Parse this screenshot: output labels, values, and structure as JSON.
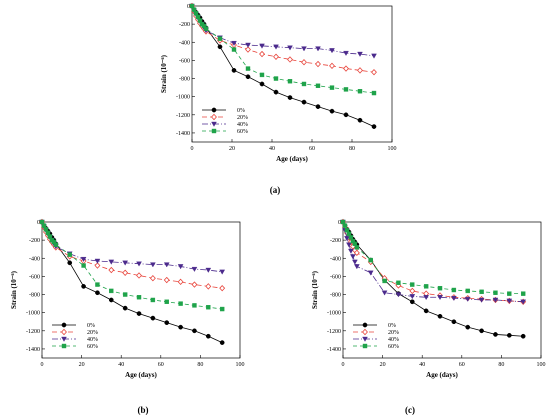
{
  "chart_data": [
    {
      "type": "line",
      "panel_label": "(a)",
      "xlabel": "Age (days)",
      "ylabel": "Strain (10⁻⁶)",
      "xlim": [
        0,
        100
      ],
      "ylim": [
        -1500,
        0
      ],
      "xticks": [
        0,
        20,
        40,
        60,
        80,
        100
      ],
      "yticks": [
        0,
        -200,
        -400,
        -600,
        -800,
        -1000,
        -1200,
        -1400
      ],
      "legend_position": "lower-left",
      "series": [
        {
          "name": "0%",
          "color": "#000000",
          "marker": "circle-filled",
          "dash": "",
          "points": [
            [
              0,
              0
            ],
            [
              1,
              -40
            ],
            [
              2,
              -70
            ],
            [
              3,
              -100
            ],
            [
              4,
              -130
            ],
            [
              5,
              -170
            ],
            [
              6,
              -200
            ],
            [
              7,
              -240
            ],
            [
              14,
              -450
            ],
            [
              21,
              -710
            ],
            [
              28,
              -780
            ],
            [
              35,
              -860
            ],
            [
              42,
              -950
            ],
            [
              49,
              -1010
            ],
            [
              56,
              -1060
            ],
            [
              63,
              -1110
            ],
            [
              70,
              -1160
            ],
            [
              77,
              -1200
            ],
            [
              84,
              -1260
            ],
            [
              91,
              -1330
            ]
          ]
        },
        {
          "name": "20%",
          "color": "#e8453c",
          "marker": "diamond-open",
          "dash": "5,3",
          "points": [
            [
              0,
              0
            ],
            [
              1,
              -60
            ],
            [
              2,
              -110
            ],
            [
              3,
              -150
            ],
            [
              4,
              -190
            ],
            [
              5,
              -220
            ],
            [
              6,
              -250
            ],
            [
              7,
              -280
            ],
            [
              14,
              -380
            ],
            [
              21,
              -430
            ],
            [
              28,
              -480
            ],
            [
              35,
              -530
            ],
            [
              42,
              -560
            ],
            [
              49,
              -590
            ],
            [
              56,
              -620
            ],
            [
              63,
              -640
            ],
            [
              70,
              -660
            ],
            [
              77,
              -690
            ],
            [
              84,
              -710
            ],
            [
              91,
              -730
            ]
          ]
        },
        {
          "name": "40%",
          "color": "#4b2a8c",
          "marker": "triangle-down-filled",
          "dash": "6,2,1,2",
          "points": [
            [
              0,
              0
            ],
            [
              1,
              -50
            ],
            [
              2,
              -90
            ],
            [
              3,
              -130
            ],
            [
              4,
              -170
            ],
            [
              5,
              -200
            ],
            [
              6,
              -240
            ],
            [
              7,
              -270
            ],
            [
              14,
              -350
            ],
            [
              21,
              -410
            ],
            [
              28,
              -430
            ],
            [
              35,
              -440
            ],
            [
              42,
              -450
            ],
            [
              49,
              -460
            ],
            [
              56,
              -470
            ],
            [
              63,
              -470
            ],
            [
              70,
              -490
            ],
            [
              77,
              -520
            ],
            [
              84,
              -530
            ],
            [
              91,
              -550
            ]
          ]
        },
        {
          "name": "60%",
          "color": "#1fa34a",
          "marker": "square-filled",
          "dash": "4,3",
          "points": [
            [
              0,
              0
            ],
            [
              1,
              -40
            ],
            [
              2,
              -80
            ],
            [
              3,
              -120
            ],
            [
              4,
              -160
            ],
            [
              5,
              -200
            ],
            [
              6,
              -220
            ],
            [
              7,
              -250
            ],
            [
              14,
              -360
            ],
            [
              21,
              -480
            ],
            [
              28,
              -690
            ],
            [
              35,
              -760
            ],
            [
              42,
              -800
            ],
            [
              49,
              -830
            ],
            [
              56,
              -860
            ],
            [
              63,
              -880
            ],
            [
              70,
              -900
            ],
            [
              77,
              -920
            ],
            [
              84,
              -940
            ],
            [
              91,
              -960
            ]
          ]
        }
      ]
    },
    {
      "type": "line",
      "panel_label": "(b)",
      "xlabel": "Age (days)",
      "ylabel": "Strain (10⁻⁶)",
      "xlim": [
        0,
        100
      ],
      "ylim": [
        -1500,
        0
      ],
      "xticks": [
        0,
        20,
        40,
        60,
        80,
        100
      ],
      "yticks": [
        0,
        -200,
        -400,
        -600,
        -800,
        -1000,
        -1200,
        -1400
      ],
      "legend_position": "lower-left",
      "series": [
        {
          "name": "0%",
          "color": "#000000",
          "marker": "circle-filled",
          "dash": "",
          "points": [
            [
              0,
              0
            ],
            [
              1,
              -40
            ],
            [
              2,
              -70
            ],
            [
              3,
              -100
            ],
            [
              4,
              -130
            ],
            [
              5,
              -170
            ],
            [
              6,
              -200
            ],
            [
              7,
              -240
            ],
            [
              14,
              -450
            ],
            [
              21,
              -710
            ],
            [
              28,
              -780
            ],
            [
              35,
              -860
            ],
            [
              42,
              -950
            ],
            [
              49,
              -1010
            ],
            [
              56,
              -1060
            ],
            [
              63,
              -1110
            ],
            [
              70,
              -1160
            ],
            [
              77,
              -1200
            ],
            [
              84,
              -1260
            ],
            [
              91,
              -1330
            ]
          ]
        },
        {
          "name": "20%",
          "color": "#e8453c",
          "marker": "diamond-open",
          "dash": "5,3",
          "points": [
            [
              0,
              0
            ],
            [
              1,
              -60
            ],
            [
              2,
              -110
            ],
            [
              3,
              -150
            ],
            [
              4,
              -190
            ],
            [
              5,
              -220
            ],
            [
              6,
              -250
            ],
            [
              7,
              -280
            ],
            [
              14,
              -380
            ],
            [
              21,
              -430
            ],
            [
              28,
              -480
            ],
            [
              35,
              -530
            ],
            [
              42,
              -560
            ],
            [
              49,
              -590
            ],
            [
              56,
              -620
            ],
            [
              63,
              -640
            ],
            [
              70,
              -660
            ],
            [
              77,
              -690
            ],
            [
              84,
              -710
            ],
            [
              91,
              -730
            ]
          ]
        },
        {
          "name": "40%",
          "color": "#4b2a8c",
          "marker": "triangle-down-filled",
          "dash": "6,2,1,2",
          "points": [
            [
              0,
              0
            ],
            [
              1,
              -50
            ],
            [
              2,
              -90
            ],
            [
              3,
              -130
            ],
            [
              4,
              -170
            ],
            [
              5,
              -200
            ],
            [
              6,
              -240
            ],
            [
              7,
              -270
            ],
            [
              14,
              -350
            ],
            [
              21,
              -410
            ],
            [
              28,
              -430
            ],
            [
              35,
              -440
            ],
            [
              42,
              -450
            ],
            [
              49,
              -460
            ],
            [
              56,
              -470
            ],
            [
              63,
              -470
            ],
            [
              70,
              -490
            ],
            [
              77,
              -520
            ],
            [
              84,
              -530
            ],
            [
              91,
              -550
            ]
          ]
        },
        {
          "name": "60%",
          "color": "#1fa34a",
          "marker": "square-filled",
          "dash": "4,3",
          "points": [
            [
              0,
              0
            ],
            [
              1,
              -40
            ],
            [
              2,
              -80
            ],
            [
              3,
              -120
            ],
            [
              4,
              -160
            ],
            [
              5,
              -200
            ],
            [
              6,
              -220
            ],
            [
              7,
              -250
            ],
            [
              14,
              -360
            ],
            [
              21,
              -480
            ],
            [
              28,
              -690
            ],
            [
              35,
              -760
            ],
            [
              42,
              -800
            ],
            [
              49,
              -830
            ],
            [
              56,
              -860
            ],
            [
              63,
              -880
            ],
            [
              70,
              -900
            ],
            [
              77,
              -920
            ],
            [
              84,
              -940
            ],
            [
              91,
              -960
            ]
          ]
        }
      ]
    },
    {
      "type": "line",
      "panel_label": "(c)",
      "xlabel": "Age (days)",
      "ylabel": "Strain (10⁻⁶)",
      "xlim": [
        0,
        100
      ],
      "ylim": [
        -1500,
        0
      ],
      "xticks": [
        0,
        20,
        40,
        60,
        80,
        100
      ],
      "yticks": [
        0,
        -200,
        -400,
        -600,
        -800,
        -1000,
        -1200,
        -1400
      ],
      "legend_position": "lower-left",
      "series": [
        {
          "name": "0%",
          "color": "#000000",
          "marker": "circle-filled",
          "dash": "",
          "points": [
            [
              0,
              0
            ],
            [
              1,
              -40
            ],
            [
              2,
              -80
            ],
            [
              3,
              -110
            ],
            [
              4,
              -150
            ],
            [
              5,
              -190
            ],
            [
              6,
              -220
            ],
            [
              7,
              -250
            ],
            [
              14,
              -420
            ],
            [
              21,
              -640
            ],
            [
              28,
              -790
            ],
            [
              35,
              -880
            ],
            [
              42,
              -980
            ],
            [
              49,
              -1040
            ],
            [
              56,
              -1100
            ],
            [
              63,
              -1160
            ],
            [
              70,
              -1200
            ],
            [
              77,
              -1240
            ],
            [
              84,
              -1250
            ],
            [
              91,
              -1260
            ]
          ]
        },
        {
          "name": "20%",
          "color": "#e8453c",
          "marker": "diamond-open",
          "dash": "5,3",
          "points": [
            [
              0,
              0
            ],
            [
              1,
              -60
            ],
            [
              2,
              -120
            ],
            [
              3,
              -170
            ],
            [
              4,
              -220
            ],
            [
              5,
              -270
            ],
            [
              6,
              -310
            ],
            [
              7,
              -340
            ],
            [
              14,
              -440
            ],
            [
              21,
              -620
            ],
            [
              28,
              -700
            ],
            [
              35,
              -760
            ],
            [
              42,
              -790
            ],
            [
              49,
              -810
            ],
            [
              56,
              -830
            ],
            [
              63,
              -840
            ],
            [
              70,
              -850
            ],
            [
              77,
              -860
            ],
            [
              84,
              -870
            ],
            [
              91,
              -880
            ]
          ]
        },
        {
          "name": "40%",
          "color": "#4b2a8c",
          "marker": "triangle-down-filled",
          "dash": "6,2,1,2",
          "points": [
            [
              0,
              0
            ],
            [
              1,
              -90
            ],
            [
              2,
              -180
            ],
            [
              3,
              -250
            ],
            [
              4,
              -320
            ],
            [
              5,
              -380
            ],
            [
              6,
              -440
            ],
            [
              7,
              -490
            ],
            [
              14,
              -560
            ],
            [
              21,
              -780
            ],
            [
              28,
              -800
            ],
            [
              35,
              -820
            ],
            [
              42,
              -830
            ],
            [
              49,
              -830
            ],
            [
              56,
              -840
            ],
            [
              63,
              -850
            ],
            [
              70,
              -860
            ],
            [
              77,
              -860
            ],
            [
              84,
              -870
            ],
            [
              91,
              -880
            ]
          ]
        },
        {
          "name": "60%",
          "color": "#1fa34a",
          "marker": "square-filled",
          "dash": "4,3",
          "points": [
            [
              0,
              0
            ],
            [
              1,
              -40
            ],
            [
              2,
              -90
            ],
            [
              3,
              -130
            ],
            [
              4,
              -170
            ],
            [
              5,
              -210
            ],
            [
              6,
              -240
            ],
            [
              7,
              -280
            ],
            [
              14,
              -420
            ],
            [
              21,
              -650
            ],
            [
              28,
              -670
            ],
            [
              35,
              -690
            ],
            [
              42,
              -710
            ],
            [
              49,
              -730
            ],
            [
              56,
              -750
            ],
            [
              63,
              -760
            ],
            [
              70,
              -770
            ],
            [
              77,
              -780
            ],
            [
              84,
              -790
            ],
            [
              91,
              -790
            ]
          ]
        }
      ]
    }
  ]
}
